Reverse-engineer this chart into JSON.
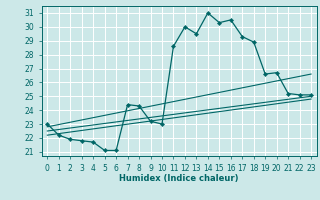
{
  "xlabel": "Humidex (Indice chaleur)",
  "bg_color": "#cce8e8",
  "grid_color": "#ffffff",
  "line_color": "#006666",
  "xlim": [
    -0.5,
    23.5
  ],
  "ylim": [
    20.7,
    31.5
  ],
  "yticks": [
    21,
    22,
    23,
    24,
    25,
    26,
    27,
    28,
    29,
    30,
    31
  ],
  "xticks": [
    0,
    1,
    2,
    3,
    4,
    5,
    6,
    7,
    8,
    9,
    10,
    11,
    12,
    13,
    14,
    15,
    16,
    17,
    18,
    19,
    20,
    21,
    22,
    23
  ],
  "line1_x": [
    0,
    1,
    2,
    3,
    4,
    5,
    6,
    7,
    8,
    9,
    10,
    11,
    12,
    13,
    14,
    15,
    16,
    17,
    18,
    19,
    20,
    21,
    22,
    23
  ],
  "line1_y": [
    23.0,
    22.2,
    21.9,
    21.8,
    21.7,
    21.1,
    21.1,
    24.4,
    24.3,
    23.2,
    23.0,
    28.6,
    30.0,
    29.5,
    31.0,
    30.3,
    30.5,
    29.3,
    28.9,
    26.6,
    26.7,
    25.2,
    25.1,
    25.1
  ],
  "line2_x": [
    0,
    23
  ],
  "line2_y": [
    22.8,
    26.6
  ],
  "line3_x": [
    0,
    23
  ],
  "line3_y": [
    22.5,
    25.0
  ],
  "line4_x": [
    0,
    23
  ],
  "line4_y": [
    22.2,
    24.8
  ]
}
